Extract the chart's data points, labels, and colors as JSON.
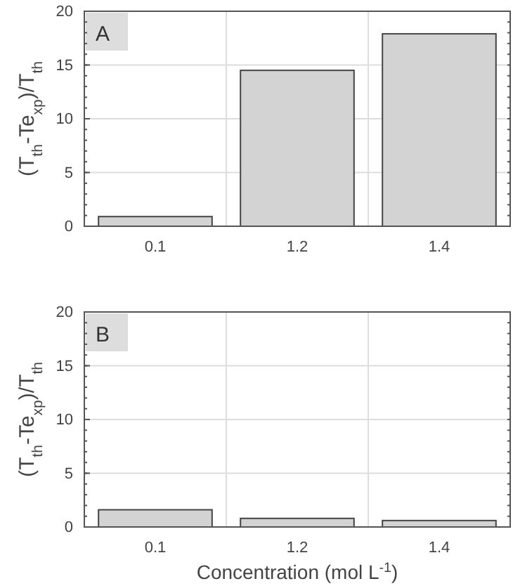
{
  "chart_data": [
    {
      "type": "bar",
      "categories": [
        "0.1",
        "1.2",
        "1.4"
      ],
      "values": [
        0.9,
        14.5,
        17.9
      ],
      "color": "#d3d3d3",
      "ylim": [
        0,
        20
      ],
      "yticks": [
        0,
        5,
        10,
        15,
        20
      ],
      "grid": true,
      "ylabel": "(T$_{th}$-Te$_{xp}$)/T$_{th}$",
      "annotations": [
        "A"
      ]
    },
    {
      "type": "bar",
      "categories": [
        "0.1",
        "1.2",
        "1.4"
      ],
      "values": [
        1.6,
        0.8,
        0.6
      ],
      "color": "#d3d3d3",
      "ylim": [
        0,
        20
      ],
      "yticks": [
        0,
        5,
        10,
        15,
        20
      ],
      "grid": true,
      "ylabel": "(T$_{th}$-Te$_{xp}$)/T$_{th}$",
      "xlabel": "Concentration (mol L$^{-1}$)",
      "annotations": [
        "B"
      ]
    }
  ]
}
